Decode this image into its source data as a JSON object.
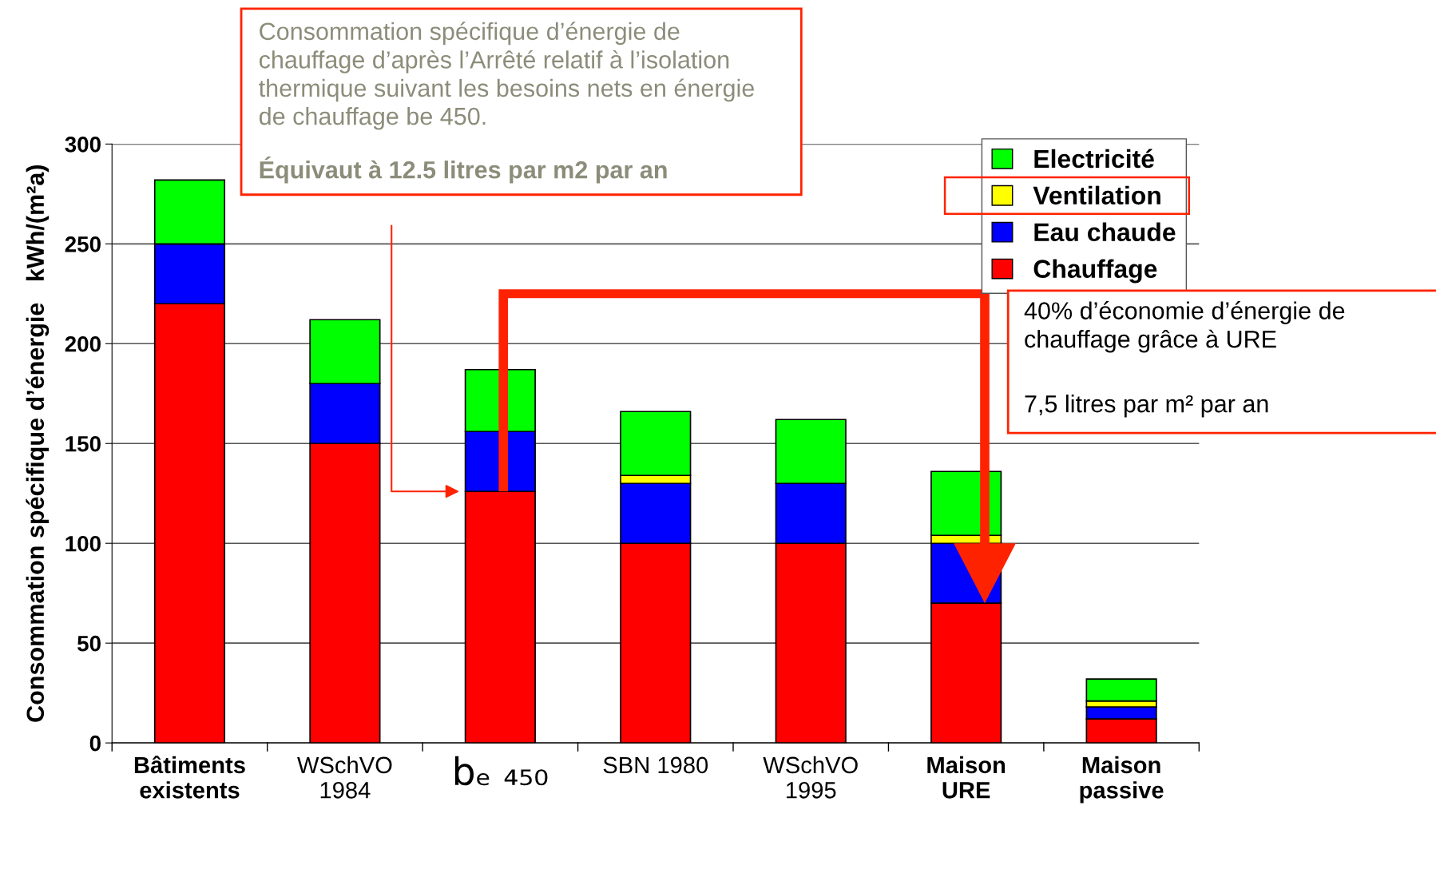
{
  "chart_data": {
    "type": "bar",
    "stacked": true,
    "categories": [
      "Bâtiments\nexistents",
      "WSchVO\n1984",
      "bₑ ₄₅₀",
      "SBN 1980",
      "WSchVO\n1995",
      "Maison\nURE",
      "Maison\npassive"
    ],
    "series": [
      {
        "name": "Chauffage",
        "color": "#ff0000",
        "values": [
          220,
          150,
          126,
          100,
          100,
          70,
          12
        ]
      },
      {
        "name": "Eau chaude",
        "color": "#0000ff",
        "values": [
          30,
          30,
          30,
          30,
          30,
          30,
          6
        ]
      },
      {
        "name": "Ventilation",
        "color": "#ffff00",
        "values": [
          0,
          0,
          0,
          4,
          0,
          4,
          3
        ]
      },
      {
        "name": "Electricité",
        "color": "#00ff00",
        "values": [
          32,
          32,
          31,
          32,
          32,
          32,
          11
        ]
      }
    ],
    "ylabel": "Consommation spécifique d’énergie   kWh/(m²a)",
    "ylim": [
      0,
      300
    ],
    "yticks": [
      0,
      50,
      100,
      150,
      200,
      250,
      300
    ],
    "grid": "y",
    "legend": "top right",
    "annotations": [
      "Consommation spécifique d’énergie de\nchauffage d’après l’Arrêté relatif à l’isolation\nthermique suivant les besoins nets en énergie\nde chauffage be 450.",
      "Équivaut à 12.5 litres par m2 par an",
      "40% d’économie d’énergie de\nchauffage grâce à URE",
      "7,5 litres par m² par an"
    ]
  }
}
